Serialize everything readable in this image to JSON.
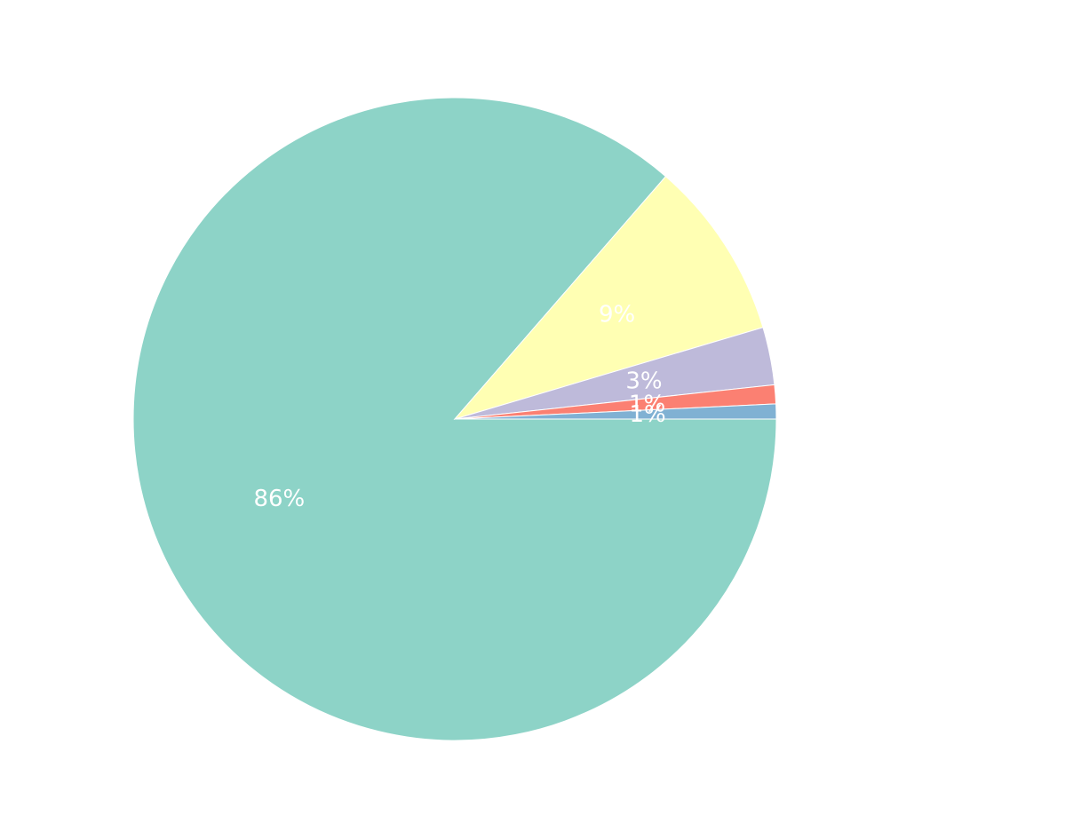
{
  "chart_data": {
    "type": "pie",
    "title": "",
    "legend": "none",
    "start_angle_deg": 0,
    "direction": "clockwise",
    "slices": [
      {
        "value": 86.3,
        "label": "86%",
        "color": "#8dd3c7"
      },
      {
        "value": 9.0,
        "label": "9%",
        "color": "#ffffb3"
      },
      {
        "value": 2.9,
        "label": "3%",
        "color": "#bebada"
      },
      {
        "value": 0.95,
        "label": "1%",
        "color": "#fb8072"
      },
      {
        "value": 0.75,
        "label": "1%",
        "color": "#80b1d3"
      }
    ]
  }
}
